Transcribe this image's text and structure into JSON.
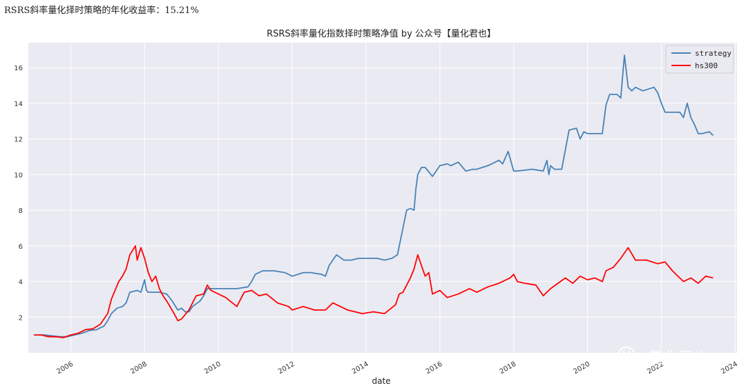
{
  "header": {
    "text": "RSRS斜率量化择时策略的年化收益率：15.21%"
  },
  "watermark": {
    "text": "量化君也",
    "icon": "wechat-icon"
  },
  "colors": {
    "background": "#eaeaf2",
    "grid": "#ffffff",
    "strategy": "#4682b4",
    "hs300": "#ff0000"
  },
  "chart_data": {
    "type": "line",
    "title": "RSRS斜率量化指数择时策略净值  by 公众号【量化君也】",
    "xlabel": "date",
    "ylabel": "",
    "xlim": [
      2004.85,
      2024.05
    ],
    "ylim": [
      0.0,
      17.4
    ],
    "xticks": [
      2006,
      2008,
      2010,
      2012,
      2014,
      2016,
      2018,
      2020,
      2022,
      2024
    ],
    "yticks": [
      2,
      4,
      6,
      8,
      10,
      12,
      14,
      16
    ],
    "grid": true,
    "legend_position": "top-right",
    "series": [
      {
        "name": "strategy",
        "color": "#4682b4",
        "x": [
          2005.1,
          2005.3,
          2005.5,
          2005.7,
          2005.9,
          2006.1,
          2006.3,
          2006.5,
          2006.7,
          2006.9,
          2007.0,
          2007.1,
          2007.25,
          2007.4,
          2007.5,
          2007.6,
          2007.8,
          2007.9,
          2008.0,
          2008.05,
          2008.1,
          2008.4,
          2008.6,
          2008.75,
          2008.9,
          2009.0,
          2009.1,
          2009.2,
          2009.3,
          2009.5,
          2009.6,
          2009.7,
          2010.0,
          2010.5,
          2010.8,
          2010.9,
          2011.0,
          2011.2,
          2011.5,
          2011.8,
          2012.0,
          2012.3,
          2012.5,
          2012.8,
          2012.9,
          2013.0,
          2013.2,
          2013.4,
          2013.6,
          2013.8,
          2014.0,
          2014.3,
          2014.5,
          2014.7,
          2014.85,
          2014.95,
          2015.1,
          2015.2,
          2015.3,
          2015.35,
          2015.4,
          2015.5,
          2015.6,
          2015.8,
          2016.0,
          2016.2,
          2016.3,
          2016.5,
          2016.7,
          2016.9,
          2017.0,
          2017.3,
          2017.6,
          2017.7,
          2017.85,
          2018.0,
          2018.1,
          2018.5,
          2018.8,
          2018.9,
          2018.95,
          2019.0,
          2019.1,
          2019.3,
          2019.5,
          2019.7,
          2019.8,
          2019.9,
          2020.0,
          2020.1,
          2020.4,
          2020.5,
          2020.6,
          2020.8,
          2020.9,
          2021.0,
          2021.1,
          2021.2,
          2021.3,
          2021.5,
          2021.8,
          2021.9,
          2022.0,
          2022.1,
          2022.3,
          2022.5,
          2022.6,
          2022.7,
          2022.8,
          2022.9,
          2023.0,
          2023.1,
          2023.3,
          2023.4
        ],
        "values": [
          1.0,
          1.0,
          0.95,
          0.9,
          0.9,
          1.0,
          1.1,
          1.25,
          1.3,
          1.5,
          1.8,
          2.2,
          2.5,
          2.6,
          2.8,
          3.4,
          3.5,
          3.4,
          4.1,
          3.5,
          3.4,
          3.4,
          3.3,
          2.9,
          2.4,
          2.5,
          2.3,
          2.3,
          2.6,
          2.9,
          3.2,
          3.6,
          3.6,
          3.6,
          3.7,
          4.0,
          4.4,
          4.6,
          4.6,
          4.5,
          4.3,
          4.5,
          4.5,
          4.4,
          4.3,
          4.9,
          5.5,
          5.2,
          5.2,
          5.3,
          5.3,
          5.3,
          5.2,
          5.3,
          5.5,
          6.5,
          8.0,
          8.1,
          8.0,
          9.2,
          10.0,
          10.4,
          10.4,
          9.9,
          10.5,
          10.6,
          10.5,
          10.7,
          10.2,
          10.3,
          10.3,
          10.5,
          10.8,
          10.6,
          11.3,
          10.2,
          10.2,
          10.3,
          10.2,
          10.8,
          10.0,
          10.5,
          10.3,
          10.3,
          12.5,
          12.6,
          12.0,
          12.4,
          12.3,
          12.3,
          12.3,
          13.9,
          14.5,
          14.5,
          14.3,
          16.7,
          14.9,
          14.7,
          14.9,
          14.7,
          14.9,
          14.6,
          14.0,
          13.5,
          13.5,
          13.5,
          13.2,
          14.0,
          13.2,
          12.8,
          12.3,
          12.3,
          12.4,
          12.2
        ]
      },
      {
        "name": "hs300",
        "color": "#ff0000",
        "x": [
          2005.0,
          2005.2,
          2005.4,
          2005.6,
          2005.8,
          2006.0,
          2006.2,
          2006.4,
          2006.6,
          2006.8,
          2007.0,
          2007.1,
          2007.3,
          2007.4,
          2007.5,
          2007.6,
          2007.75,
          2007.8,
          2007.9,
          2008.0,
          2008.1,
          2008.2,
          2008.3,
          2008.4,
          2008.5,
          2008.6,
          2008.8,
          2008.9,
          2009.0,
          2009.2,
          2009.4,
          2009.6,
          2009.7,
          2009.8,
          2010.0,
          2010.2,
          2010.5,
          2010.7,
          2010.9,
          2011.1,
          2011.3,
          2011.6,
          2011.9,
          2012.0,
          2012.3,
          2012.6,
          2012.9,
          2013.1,
          2013.5,
          2013.9,
          2014.2,
          2014.5,
          2014.8,
          2014.9,
          2015.0,
          2015.2,
          2015.3,
          2015.4,
          2015.45,
          2015.6,
          2015.7,
          2015.8,
          2016.0,
          2016.2,
          2016.5,
          2016.8,
          2017.0,
          2017.3,
          2017.6,
          2017.9,
          2018.0,
          2018.1,
          2018.3,
          2018.6,
          2018.8,
          2019.0,
          2019.2,
          2019.4,
          2019.6,
          2019.8,
          2020.0,
          2020.2,
          2020.4,
          2020.5,
          2020.7,
          2020.9,
          2021.1,
          2021.3,
          2021.6,
          2021.9,
          2022.1,
          2022.3,
          2022.6,
          2022.8,
          2023.0,
          2023.2,
          2023.4
        ],
        "values": [
          1.0,
          1.0,
          0.9,
          0.9,
          0.85,
          1.0,
          1.1,
          1.3,
          1.35,
          1.6,
          2.2,
          3.0,
          4.0,
          4.3,
          4.7,
          5.5,
          6.0,
          5.2,
          5.9,
          5.3,
          4.5,
          4.0,
          4.3,
          3.6,
          3.2,
          2.9,
          2.2,
          1.8,
          1.9,
          2.4,
          3.2,
          3.3,
          3.8,
          3.5,
          3.3,
          3.1,
          2.6,
          3.4,
          3.5,
          3.2,
          3.3,
          2.8,
          2.6,
          2.4,
          2.6,
          2.4,
          2.4,
          2.8,
          2.4,
          2.2,
          2.3,
          2.2,
          2.7,
          3.3,
          3.4,
          4.2,
          4.7,
          5.5,
          5.2,
          4.3,
          4.5,
          3.3,
          3.5,
          3.1,
          3.3,
          3.6,
          3.4,
          3.7,
          3.9,
          4.2,
          4.4,
          4.0,
          3.9,
          3.8,
          3.2,
          3.6,
          3.9,
          4.2,
          3.9,
          4.3,
          4.1,
          4.2,
          4.0,
          4.6,
          4.8,
          5.3,
          5.9,
          5.2,
          5.2,
          5.0,
          5.1,
          4.6,
          4.0,
          4.2,
          3.9,
          4.3,
          4.2
        ]
      }
    ]
  }
}
